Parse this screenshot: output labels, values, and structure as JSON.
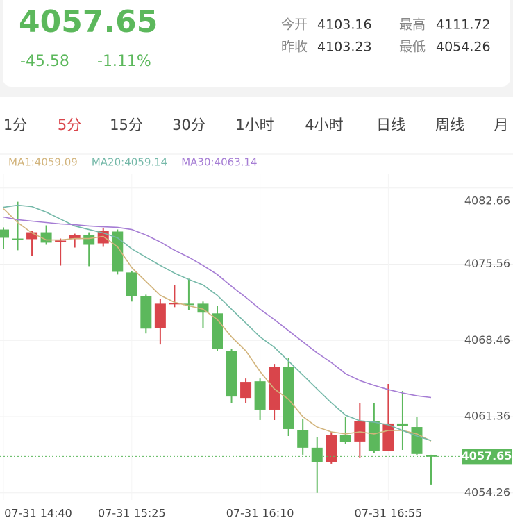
{
  "header": {
    "price": "4057.65",
    "change": "-45.58",
    "change_pct": "-1.11%",
    "stats": [
      {
        "label": "今开",
        "value": "4103.16"
      },
      {
        "label": "最高",
        "value": "4111.72"
      },
      {
        "label": "昨收",
        "value": "4103.23"
      },
      {
        "label": "最低",
        "value": "4054.26"
      }
    ]
  },
  "tabs": [
    "1分",
    "5分",
    "15分",
    "30分",
    "1小时",
    "4小时",
    "日线",
    "周线",
    "月"
  ],
  "active_tab": 1,
  "chart_data": {
    "type": "candlestick",
    "categories": [
      "07-31 14:40",
      null,
      null,
      null,
      null,
      null,
      null,
      null,
      null,
      "07-31 15:25",
      null,
      null,
      null,
      null,
      null,
      null,
      null,
      null,
      "07-31 16:10",
      null,
      null,
      null,
      null,
      null,
      null,
      null,
      null,
      "07-31 16:55",
      null,
      null,
      null
    ],
    "open": [
      4078.79,
      4077.95,
      4077.89,
      4078.53,
      4077.63,
      4077.89,
      4078.27,
      4077.5,
      4078.6,
      4074.79,
      4072.59,
      4069.62,
      4071.82,
      4071.88,
      4071.88,
      4070.98,
      4067.49,
      4063.1,
      4064.65,
      4062.01,
      4066.01,
      4060.13,
      4058.46,
      4057.1,
      4059.68,
      4059.04,
      4060.91,
      4058.13,
      4060.72,
      4060.39,
      4057.75
    ],
    "high": [
      4078.99,
      4081.37,
      4078.66,
      4079.18,
      4077.95,
      4078.4,
      4078.53,
      4078.92,
      4078.79,
      4074.92,
      4072.72,
      4072.34,
      4073.63,
      4074.21,
      4072.08,
      4071.69,
      4067.69,
      4064.91,
      4064.91,
      4066.27,
      4066.85,
      4061.17,
      4059.42,
      4059.94,
      4061.36,
      4062.65,
      4062.65,
      4064.4,
      4063.75,
      4061.36,
      4057.81
    ],
    "low": [
      4076.98,
      4076.86,
      4076.34,
      4077.37,
      4075.43,
      4077.11,
      4075.37,
      4077.18,
      4074.6,
      4072.08,
      4069.11,
      4068.08,
      4071.56,
      4071.3,
      4069.62,
      4067.49,
      4062.59,
      4062.65,
      4061.04,
      4061.04,
      4059.55,
      4057.81,
      4054.26,
      4056.97,
      4058.78,
      4057.55,
      4058.0,
      4058.13,
      4058.26,
      4057.75,
      4055.03
    ],
    "close": [
      4078.02,
      4077.89,
      4078.53,
      4077.57,
      4077.76,
      4078.27,
      4077.37,
      4078.66,
      4074.85,
      4072.59,
      4069.56,
      4071.88,
      4071.95,
      4071.76,
      4071.05,
      4067.69,
      4063.23,
      4064.59,
      4062.01,
      4066.01,
      4060.2,
      4058.46,
      4057.1,
      4059.68,
      4058.97,
      4060.91,
      4058.13,
      4060.72,
      4060.46,
      4057.88,
      4057.65
    ],
    "up_color": "#d9454b",
    "down_color": "#5cb85c",
    "series": [
      {
        "name": "MA1",
        "label": "MA1:4059.09",
        "color": "#d2b47c",
        "values": [
          4080.73,
          4079.44,
          4078.47,
          4077.82,
          4077.82,
          4077.95,
          4077.95,
          4078.15,
          4077.18,
          4075.24,
          4073.95,
          4072.66,
          4072.01,
          4071.69,
          4071.37,
          4070.4,
          4068.79,
          4067.49,
          4065.56,
          4063.94,
          4062.98,
          4061.36,
          4060.39,
          4059.94,
          4059.75,
          4059.94,
          4059.75,
          4060.07,
          4060.07,
          4059.75,
          4059.09
        ]
      },
      {
        "name": "MA20",
        "label": "MA20:4059.14",
        "color": "#74b8a8",
        "values": [
          4080.86,
          4081.05,
          4080.92,
          4080.41,
          4079.76,
          4079.12,
          4078.79,
          4078.47,
          4078.02,
          4076.99,
          4076.21,
          4075.44,
          4074.73,
          4074.14,
          4073.63,
          4072.66,
          4071.37,
          4070.08,
          4068.79,
          4067.82,
          4066.53,
          4065.24,
          4063.94,
          4062.65,
          4061.49,
          4060.97,
          4060.85,
          4060.59,
          4060.07,
          4059.55,
          4059.14
        ]
      },
      {
        "name": "MA30",
        "label": "MA30:4063.14",
        "color": "#a57cd4",
        "values": [
          4079.95,
          4079.7,
          4079.57,
          4079.44,
          4079.31,
          4079.24,
          4079.12,
          4079.05,
          4078.99,
          4078.79,
          4078.28,
          4077.63,
          4076.86,
          4076.21,
          4075.44,
          4074.6,
          4073.5,
          4072.47,
          4071.37,
          4070.4,
          4069.37,
          4068.33,
          4067.3,
          4066.4,
          4065.36,
          4064.72,
          4064.27,
          4063.88,
          4063.56,
          4063.3,
          4063.14
        ]
      }
    ],
    "last_price": 4057.65,
    "ylim": [
      4053.6,
      4084.0
    ],
    "yticks": [
      4082.66,
      4075.56,
      4068.46,
      4061.36,
      4054.26
    ],
    "grid": true
  }
}
